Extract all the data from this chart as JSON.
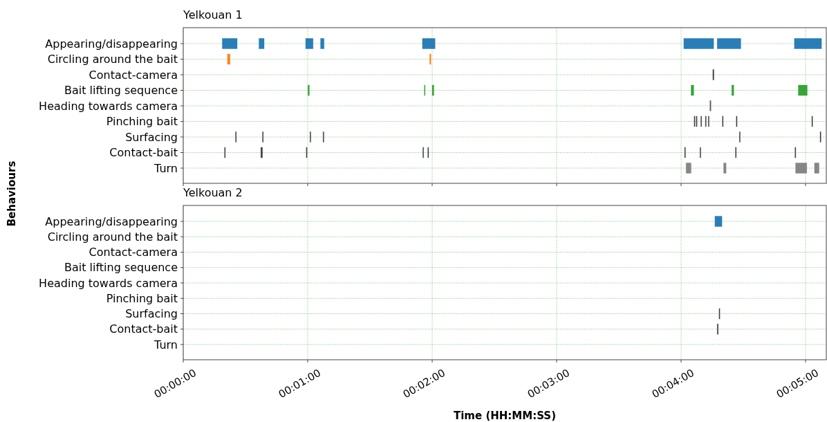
{
  "chart_data": [
    {
      "type": "bar",
      "orientation": "horizontal",
      "title": "Yelkouan 1",
      "ylabel": "Behaviours",
      "categories": [
        "Appearing/disappearing",
        "Circling around the bait",
        "Contact-camera",
        "Bait lifting sequence",
        "Heading towards camera",
        "Pinching bait",
        "Surfacing",
        "Contact-bait",
        "Turn"
      ],
      "series": [
        {
          "base": [
            18.8,
            21.3,
            255.3,
            60.1,
            253.9,
            246.3,
            25.2,
            19.9,
            242.4
          ],
          "values": [
            7.2,
            1.3,
            0.5,
            0.7,
            0.5,
            0.4,
            0.4,
            0.4,
            2.4
          ],
          "colors": [
            "#1f77b4",
            "#ff7f0e",
            "#333333",
            "#2ca02c",
            "#555555",
            "#333333",
            "#333333",
            "#333333",
            "#808080"
          ]
        },
        {
          "base": [
            36.5,
            118.8,
            null,
            116.2,
            null,
            247.3,
            38.2,
            37.4,
            260.5
          ],
          "values": [
            2.5,
            0.6,
            null,
            0.4,
            null,
            0.4,
            0.4,
            0.8,
            1.2
          ],
          "colors": [
            "#1f77b4",
            "#ff7f0e",
            null,
            "#2ca02c",
            null,
            "#333333",
            "#333333",
            "#333333",
            "#808080"
          ]
        },
        {
          "base": [
            59.0,
            null,
            null,
            120.0,
            null,
            249.5,
            61.1,
            59.3,
            295.2
          ],
          "values": [
            3.6,
            null,
            null,
            0.8,
            null,
            0.4,
            0.4,
            0.4,
            5.4
          ],
          "colors": [
            "#1f77b4",
            null,
            null,
            "#2ca02c",
            null,
            "#333333",
            "#333333",
            "#333333",
            "#808080"
          ]
        },
        {
          "base": [
            66.2,
            null,
            null,
            244.8,
            null,
            251.7,
            67.4,
            115.5,
            304.3
          ],
          "values": [
            1.7,
            null,
            null,
            1.3,
            null,
            0.4,
            0.4,
            0.4,
            2.2
          ],
          "colors": [
            "#1f77b4",
            null,
            null,
            "#2ca02c",
            null,
            "#333333",
            "#333333",
            "#333333",
            "#808080"
          ]
        },
        {
          "base": [
            115.3,
            null,
            null,
            264.4,
            null,
            253.1,
            268.1,
            117.9,
            null
          ],
          "values": [
            6.1,
            null,
            null,
            1.0,
            null,
            0.4,
            0.4,
            0.4,
            null
          ],
          "colors": [
            "#1f77b4",
            null,
            null,
            "#2ca02c",
            null,
            "#333333",
            "#333333",
            "#333333",
            null
          ]
        },
        {
          "base": [
            241.3,
            null,
            null,
            296.5,
            null,
            259.9,
            307.0,
            241.7,
            null
          ],
          "values": [
            14.4,
            null,
            null,
            4.3,
            null,
            0.4,
            0.4,
            0.4,
            null
          ],
          "colors": [
            "#1f77b4",
            null,
            null,
            "#2ca02c",
            null,
            "#333333",
            "#333333",
            "#333333",
            null
          ]
        },
        {
          "base": [
            257.4,
            null,
            null,
            null,
            null,
            266.6,
            null,
            249.1,
            null
          ],
          "values": [
            11.4,
            null,
            null,
            null,
            null,
            0.4,
            null,
            0.4,
            null
          ],
          "colors": [
            "#1f77b4",
            null,
            null,
            null,
            null,
            "#333333",
            null,
            "#333333",
            null
          ]
        },
        {
          "base": [
            294.6,
            null,
            null,
            null,
            null,
            303.0,
            null,
            266.2,
            null
          ],
          "values": [
            13.1,
            null,
            null,
            null,
            null,
            0.4,
            null,
            0.4,
            null
          ],
          "colors": [
            "#1f77b4",
            null,
            null,
            null,
            null,
            "#333333",
            null,
            "#333333",
            null
          ]
        },
        {
          "base": [
            null,
            null,
            null,
            null,
            null,
            null,
            null,
            294.9,
            null
          ],
          "values": [
            null,
            null,
            null,
            null,
            null,
            null,
            null,
            0.4,
            null
          ],
          "color": "#333333"
        }
      ],
      "xlim": [
        0,
        310
      ],
      "xticks": [
        {
          "value": 0,
          "label": null
        },
        {
          "value": 60,
          "label": null
        },
        {
          "value": 120,
          "label": null
        },
        {
          "value": 180,
          "label": null
        },
        {
          "value": 240,
          "label": null
        },
        {
          "value": 300,
          "label": null
        }
      ],
      "grid": true,
      "tick_labels": "y"
    },
    {
      "type": "bar",
      "orientation": "horizontal",
      "title": "Yelkouan 2",
      "xlabel": "Time (HH:MM:SS)",
      "categories": [
        "Appearing/disappearing",
        "Circling around the bait",
        "Contact-camera",
        "Bait lifting sequence",
        "Heading towards camera",
        "Pinching bait",
        "Surfacing",
        "Contact-bait",
        "Turn"
      ],
      "series": [
        {
          "base": [
            256.3,
            null,
            null,
            null,
            null,
            null,
            258.3,
            257.4,
            null
          ],
          "values": [
            3.4,
            null,
            null,
            null,
            null,
            null,
            0.4,
            0.5,
            null
          ],
          "colors": [
            "#1f77b4",
            null,
            null,
            null,
            null,
            null,
            "#333333",
            "#333333",
            null
          ]
        }
      ],
      "xlim": [
        0,
        310
      ],
      "xticks": [
        {
          "value": 0,
          "label": "00:00:00"
        },
        {
          "value": 60,
          "label": "00:01:00"
        },
        {
          "value": 120,
          "label": "00:02:00"
        },
        {
          "value": 180,
          "label": "00:03:00"
        },
        {
          "value": 240,
          "label": "00:04:00"
        },
        {
          "value": 300,
          "label": "00:05:00"
        }
      ],
      "grid": true
    }
  ]
}
